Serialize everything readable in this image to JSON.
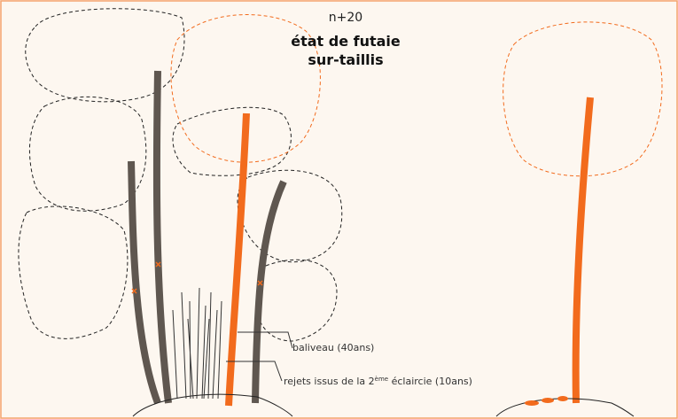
{
  "header": {
    "step": "n+20",
    "title_lines": [
      "état de futaie",
      "sur-taillis"
    ]
  },
  "labels": [
    {
      "text": "baliveau (40ans)"
    },
    {
      "parts": [
        "rejets issus de la 2",
        "ème",
        " éclaircie (10ans)"
      ]
    }
  ]
}
